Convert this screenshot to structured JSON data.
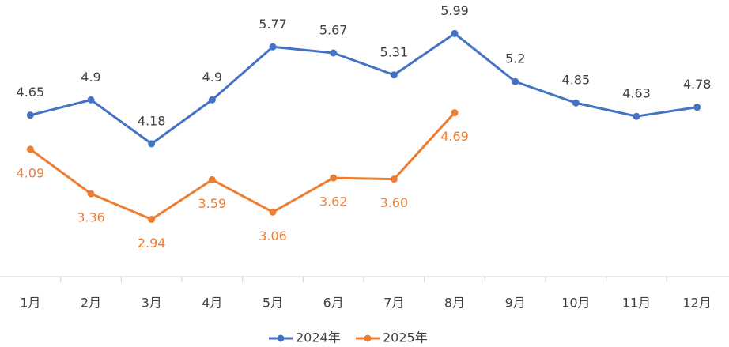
{
  "chart_data": {
    "type": "line",
    "categories": [
      "1月",
      "2月",
      "3月",
      "4月",
      "5月",
      "6月",
      "7月",
      "8月",
      "9月",
      "10月",
      "11月",
      "12月"
    ],
    "series": [
      {
        "name": "2024年",
        "color": "#4472c4",
        "values": [
          4.65,
          4.9,
          4.18,
          4.9,
          5.77,
          5.67,
          5.31,
          5.99,
          5.2,
          4.85,
          4.63,
          4.78
        ]
      },
      {
        "name": "2025年",
        "color": "#ed7d31",
        "values": [
          4.09,
          3.36,
          2.94,
          3.59,
          3.06,
          3.62,
          3.6,
          4.69,
          null,
          null,
          null,
          null
        ],
        "value_labels": [
          "4.09",
          "3.36",
          "2.94",
          "3.59",
          "3.06",
          "3.62",
          "3.60",
          "4.69",
          null,
          null,
          null,
          null
        ]
      }
    ],
    "ylim": [
      2,
      6.5
    ],
    "legend": "bottom"
  }
}
